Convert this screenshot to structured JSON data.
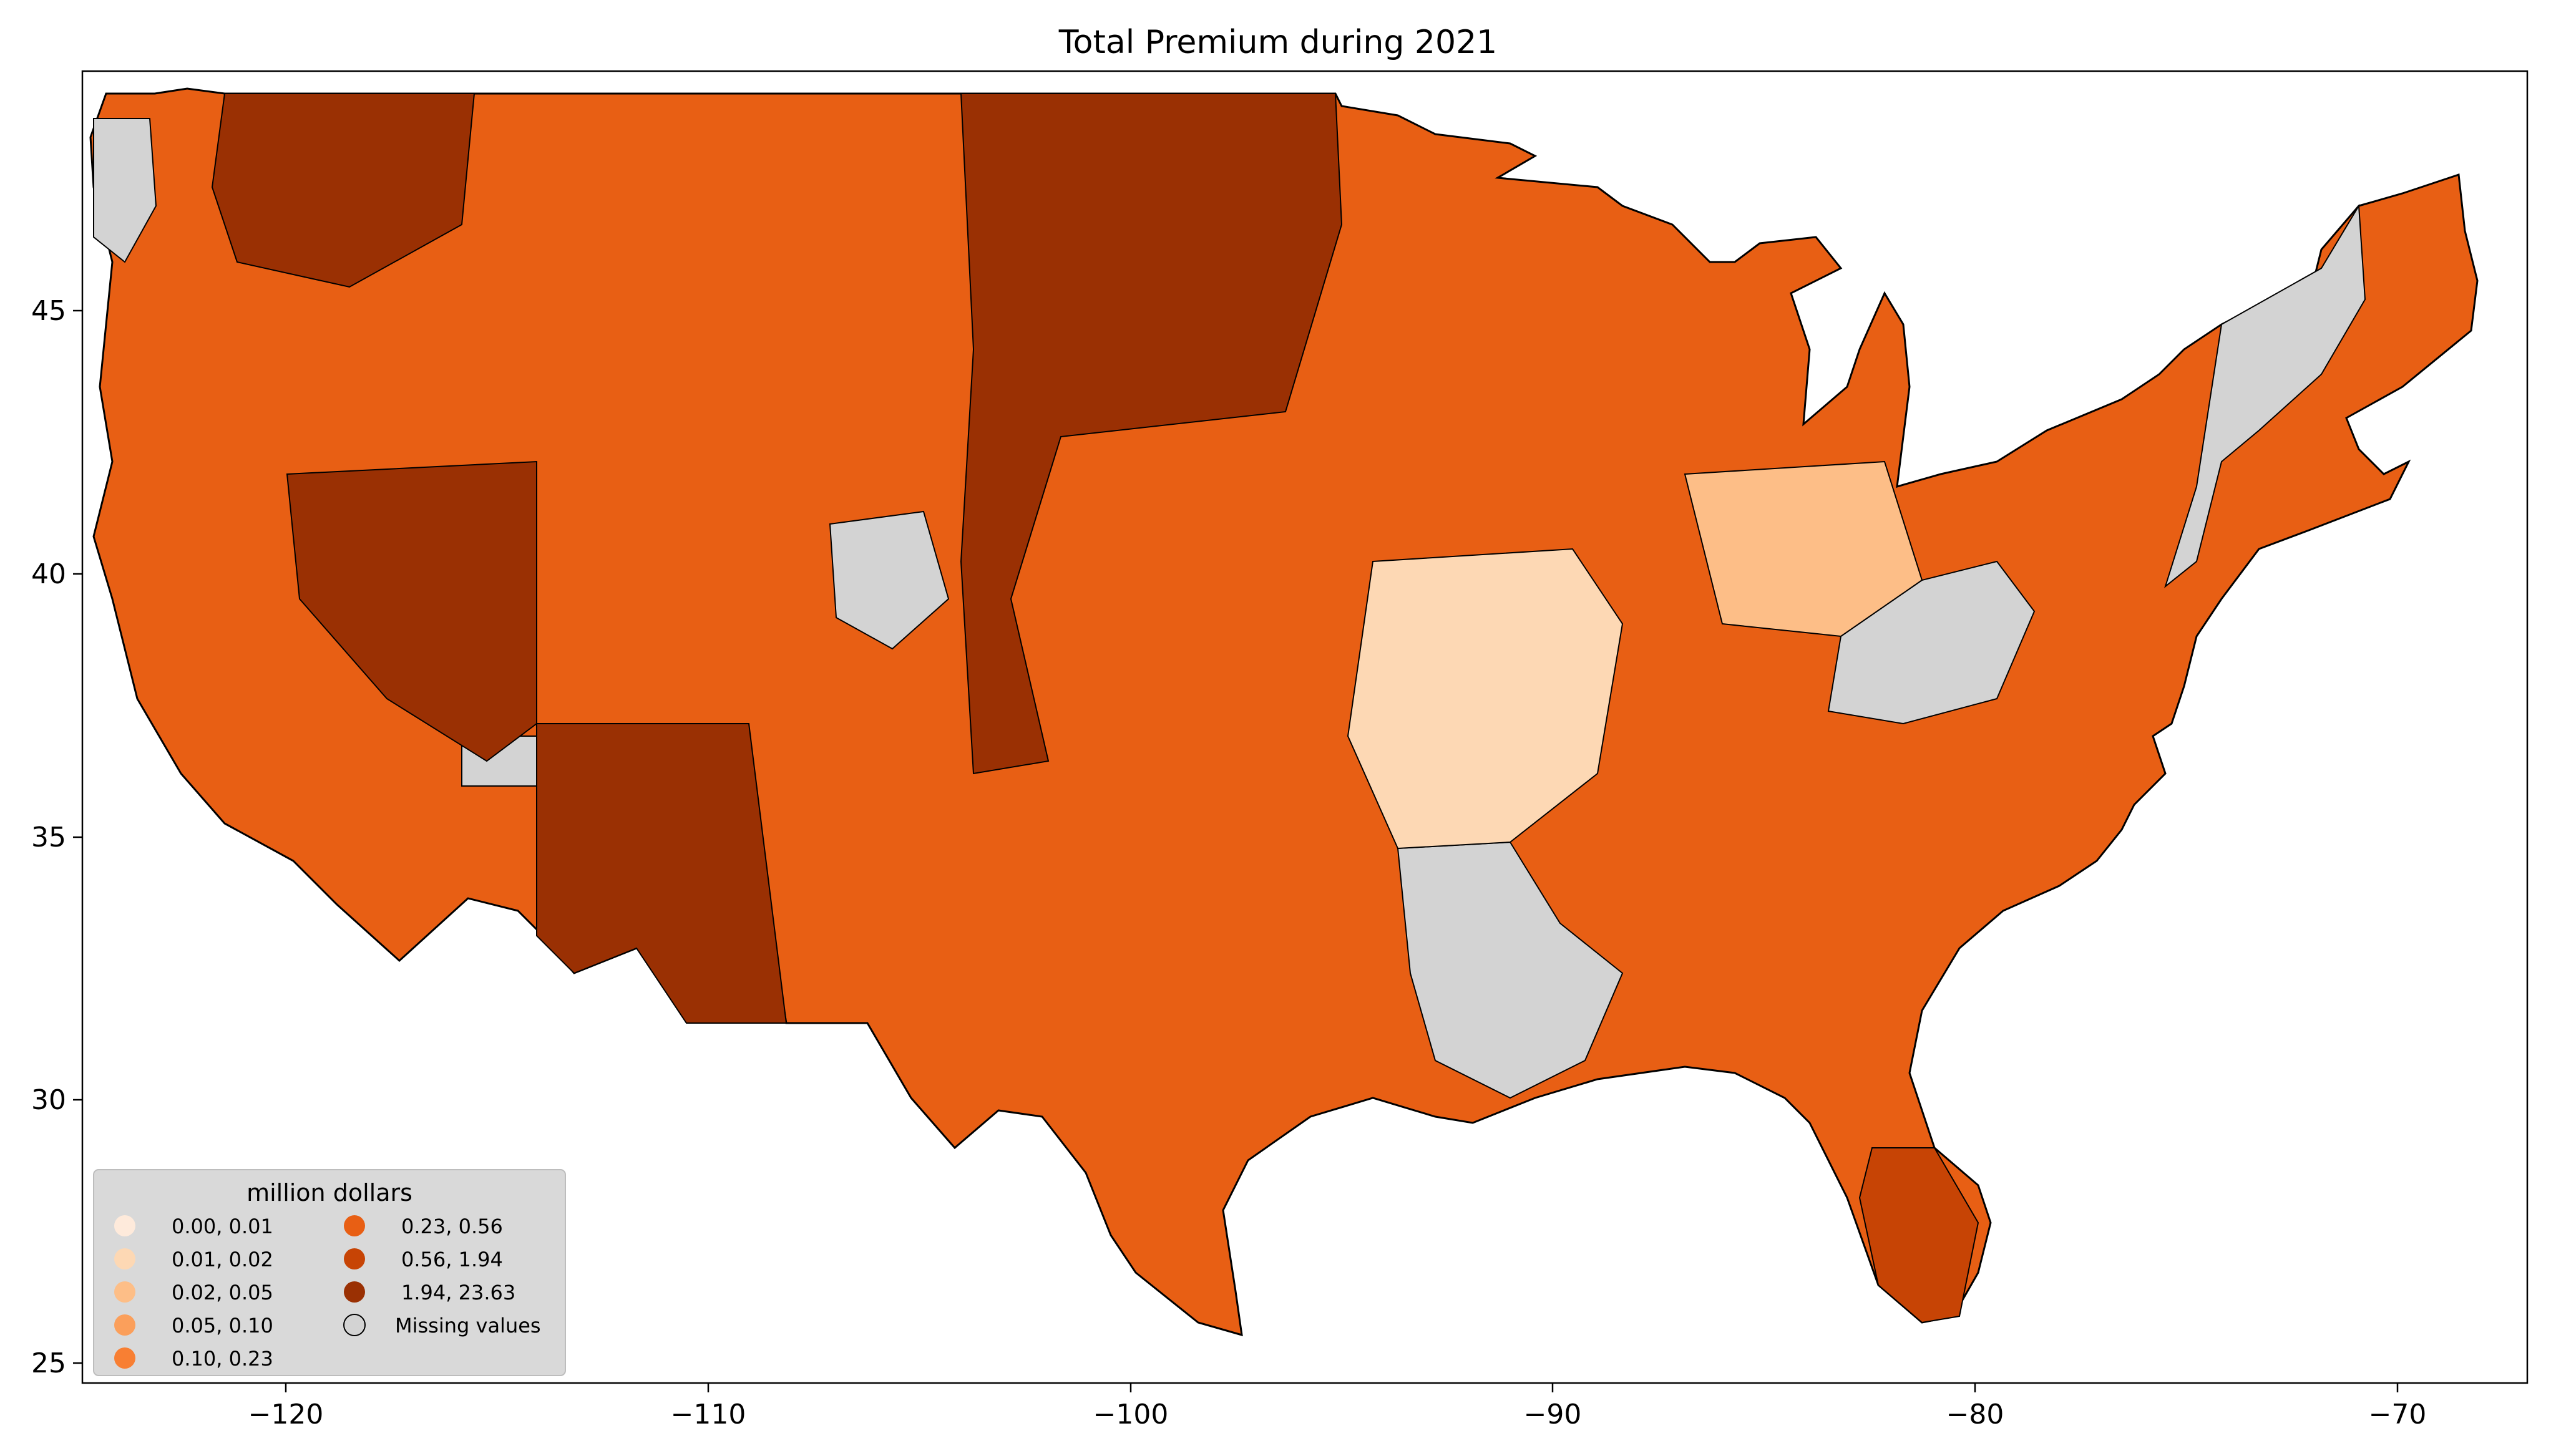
{
  "title": "Total  Premium during 2021",
  "map": {
    "x_ticks": [
      "−120",
      "−110",
      "−100",
      "−90",
      "−80",
      "−70"
    ],
    "y_ticks": [
      "25",
      "30",
      "35",
      "40",
      "45"
    ],
    "x_range": [
      -124.9,
      -66.9
    ],
    "y_range": [
      24.5,
      49.5
    ]
  },
  "legend": {
    "title": "million dollars",
    "entries": [
      {
        "label": "0.00,  0.01",
        "color": "#feeadb"
      },
      {
        "label": "0.01,  0.02",
        "color": "#fdd8b4"
      },
      {
        "label": "0.02,  0.05",
        "color": "#fdbe87"
      },
      {
        "label": "0.05,  0.10",
        "color": "#fb9f5b"
      },
      {
        "label": "0.10,  0.23",
        "color": "#f87f33"
      },
      {
        "label": "0.23,  0.56",
        "color": "#e85f14"
      },
      {
        "label": "0.56,  1.94",
        "color": "#c74405"
      },
      {
        "label": "1.94, 23.63",
        "color": "#9a3003"
      },
      {
        "label": "Missing values",
        "color": "#d3d3d3"
      }
    ]
  }
}
